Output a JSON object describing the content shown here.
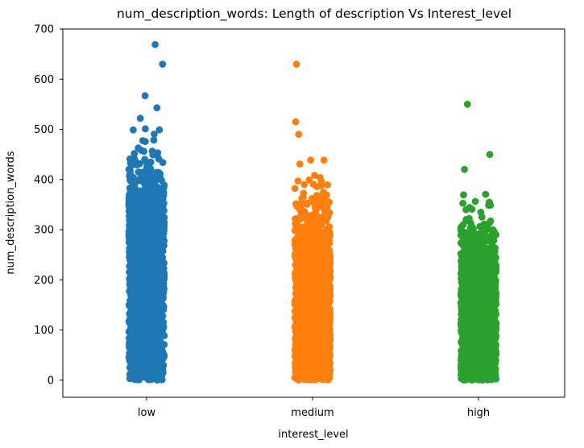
{
  "figure": {
    "background": "#ffffff",
    "axis_color": "#000000"
  },
  "chart_data": {
    "type": "scatter",
    "variant": "jittered-strip",
    "title": "num_description_words: Length of description Vs Interest_level",
    "xlabel": "interest_level",
    "ylabel": "num_description_words",
    "categories": [
      "low",
      "medium",
      "high"
    ],
    "y_ticks": [
      0,
      100,
      200,
      300,
      400,
      500,
      600,
      700
    ],
    "ylim": [
      -34,
      700
    ],
    "grid": false,
    "legend": false,
    "series": [
      {
        "name": "low",
        "color": "#1f77b4",
        "dense_range": [
          0,
          355
        ],
        "distribution_segments": [
          {
            "from": 0,
            "to": 355,
            "count": 1600
          },
          {
            "from": 355,
            "to": 385,
            "count": 120
          },
          {
            "from": 385,
            "to": 415,
            "count": 45
          },
          {
            "from": 415,
            "to": 445,
            "count": 18
          },
          {
            "from": 445,
            "to": 470,
            "count": 8
          },
          {
            "from": 470,
            "to": 505,
            "count": 7
          }
        ],
        "outliers": [
          522,
          543,
          567,
          630,
          669
        ],
        "max": 669
      },
      {
        "name": "medium",
        "color": "#ff7f0e",
        "dense_range": [
          0,
          255
        ],
        "distribution_segments": [
          {
            "from": 0,
            "to": 255,
            "count": 1450
          },
          {
            "from": 255,
            "to": 295,
            "count": 140
          },
          {
            "from": 295,
            "to": 330,
            "count": 60
          },
          {
            "from": 330,
            "to": 365,
            "count": 30
          },
          {
            "from": 365,
            "to": 395,
            "count": 12
          },
          {
            "from": 395,
            "to": 425,
            "count": 5
          },
          {
            "from": 425,
            "to": 455,
            "count": 3
          }
        ],
        "outliers": [
          490,
          515,
          630
        ],
        "max": 630
      },
      {
        "name": "high",
        "color": "#2ca02c",
        "dense_range": [
          0,
          240
        ],
        "distribution_segments": [
          {
            "from": 0,
            "to": 240,
            "count": 1300
          },
          {
            "from": 240,
            "to": 270,
            "count": 100
          },
          {
            "from": 270,
            "to": 300,
            "count": 45
          },
          {
            "from": 300,
            "to": 330,
            "count": 18
          },
          {
            "from": 330,
            "to": 355,
            "count": 8
          },
          {
            "from": 355,
            "to": 378,
            "count": 3
          }
        ],
        "outliers": [
          420,
          450,
          550
        ],
        "max": 550
      }
    ]
  }
}
